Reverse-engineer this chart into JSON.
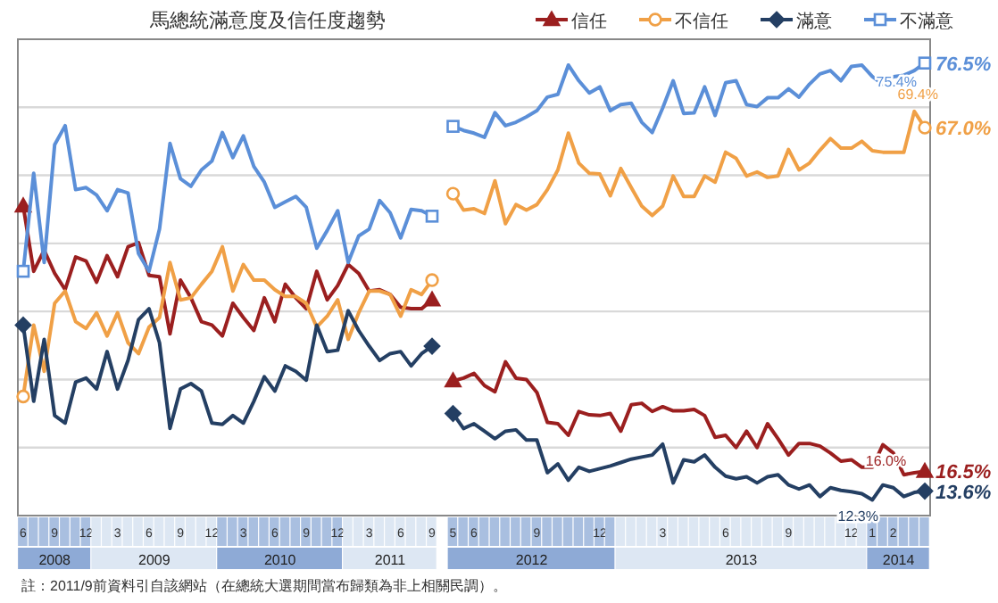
{
  "chart_data": {
    "type": "line",
    "title": "馬總統滿意度及信任度趨勢",
    "categories": [
      "6",
      null,
      null,
      "9",
      null,
      null,
      "12",
      null,
      null,
      "3",
      null,
      null,
      "6",
      null,
      null,
      "9",
      null,
      null,
      "12",
      null,
      null,
      "3",
      null,
      null,
      "6",
      null,
      null,
      "9",
      null,
      null,
      "12",
      null,
      null,
      "3",
      null,
      null,
      "6",
      null,
      null,
      "9",
      null,
      "5",
      null,
      "6",
      null,
      null,
      null,
      null,
      null,
      "9",
      null,
      null,
      null,
      null,
      null,
      "12",
      null,
      null,
      null,
      null,
      null,
      "3",
      null,
      null,
      null,
      null,
      null,
      "6",
      null,
      null,
      null,
      null,
      null,
      "9",
      null,
      null,
      null,
      null,
      null,
      "12",
      null,
      "1",
      null,
      "2",
      null,
      null,
      null
    ],
    "ylim": [
      10,
      80
    ],
    "yticks": [
      {
        "value": 20,
        "label": null
      },
      {
        "value": 30,
        "label": null
      },
      {
        "value": 40,
        "label": null
      },
      {
        "value": 50,
        "label": null
      },
      {
        "value": 60,
        "label": null
      },
      {
        "value": 70,
        "label": null
      }
    ],
    "grid": "y",
    "legend": "top right",
    "tick_labels": "x",
    "series": [
      {
        "name": "信任",
        "color": "#9b1f1f",
        "values": [
          55.5,
          45.9,
          49.0,
          45.6,
          43.2,
          48.0,
          47.4,
          44.3,
          48.2,
          45.1,
          49.5,
          50.1,
          45.3,
          45.1,
          36.7,
          44.6,
          42.0,
          38.5,
          38.0,
          36.4,
          41.2,
          39.1,
          37.2,
          42.0,
          38.5,
          44.0,
          42.0,
          40.4,
          45.9,
          41.7,
          43.8,
          46.9,
          45.6,
          43.0,
          43.2,
          42.5,
          40.6,
          40.4,
          40.4,
          41.7,
          null,
          29.8,
          30.2,
          30.9,
          29.1,
          28.2,
          32.6,
          30.2,
          30.0,
          28.1,
          23.7,
          23.5,
          21.8,
          25.3,
          24.8,
          24.7,
          25.0,
          22.4,
          26.3,
          26.5,
          25.3,
          26.0,
          25.4,
          25.4,
          25.6,
          24.7,
          21.5,
          21.8,
          20.0,
          22.4,
          20.0,
          23.5,
          21.3,
          18.9,
          20.6,
          20.6,
          20.2,
          19.2,
          18.0,
          18.2,
          17.1,
          17.1,
          20.4,
          19.2,
          16.0,
          16.3,
          16.5
        ],
        "value_labels": [
          null,
          null,
          null,
          null,
          null,
          null,
          null,
          null,
          null,
          null,
          null,
          null,
          null,
          null,
          null,
          null,
          null,
          null,
          null,
          null,
          null,
          null,
          null,
          null,
          null,
          null,
          null,
          null,
          null,
          null,
          null,
          null,
          null,
          null,
          null,
          null,
          null,
          null,
          null,
          null,
          null,
          null,
          null,
          null,
          null,
          null,
          null,
          null,
          null,
          null,
          null,
          null,
          null,
          null,
          null,
          null,
          null,
          null,
          null,
          null,
          null,
          null,
          null,
          null,
          null,
          null,
          null,
          null,
          null,
          null,
          null,
          null,
          null,
          null,
          null,
          null,
          null,
          null,
          null,
          null,
          null,
          null,
          null,
          null,
          "16.0%",
          null,
          "16.5%"
        ]
      },
      {
        "name": "不信任",
        "color": "#f0a046",
        "values": [
          27.5,
          38.0,
          31.2,
          41.2,
          43.0,
          38.5,
          37.5,
          39.8,
          36.4,
          39.8,
          35.4,
          33.8,
          37.7,
          39.1,
          47.2,
          41.7,
          42.0,
          44.0,
          45.9,
          49.5,
          43.0,
          46.9,
          44.6,
          44.6,
          43.2,
          42.2,
          42.2,
          41.2,
          37.7,
          39.3,
          41.7,
          35.9,
          39.8,
          43.0,
          43.0,
          42.5,
          39.3,
          43.2,
          42.5,
          44.6,
          null,
          57.3,
          54.9,
          55.1,
          54.4,
          59.2,
          52.9,
          55.7,
          54.9,
          55.7,
          57.9,
          60.8,
          66.2,
          61.8,
          60.3,
          60.2,
          57.0,
          61.0,
          58.2,
          55.5,
          54.1,
          55.5,
          59.9,
          56.9,
          56.9,
          59.9,
          59.0,
          63.4,
          62.5,
          59.9,
          60.5,
          59.7,
          59.9,
          63.8,
          60.8,
          61.8,
          63.7,
          65.4,
          64.0,
          64.0,
          65.0,
          63.6,
          63.4,
          63.4,
          63.4,
          69.4,
          67.0
        ],
        "value_labels": [
          null,
          null,
          null,
          null,
          null,
          null,
          null,
          null,
          null,
          null,
          null,
          null,
          null,
          null,
          null,
          null,
          null,
          null,
          null,
          null,
          null,
          null,
          null,
          null,
          null,
          null,
          null,
          null,
          null,
          null,
          null,
          null,
          null,
          null,
          null,
          null,
          null,
          null,
          null,
          null,
          null,
          null,
          null,
          null,
          null,
          null,
          null,
          null,
          null,
          null,
          null,
          null,
          null,
          null,
          null,
          null,
          null,
          null,
          null,
          null,
          null,
          null,
          null,
          null,
          null,
          null,
          null,
          null,
          null,
          null,
          null,
          null,
          null,
          null,
          null,
          null,
          null,
          null,
          null,
          null,
          null,
          null,
          null,
          null,
          null,
          "69.4%",
          "67.0%"
        ]
      },
      {
        "name": "滿意",
        "color": "#243f63",
        "values": [
          38.0,
          26.8,
          35.9,
          24.7,
          23.6,
          29.6,
          30.2,
          28.6,
          34.1,
          28.6,
          32.8,
          38.8,
          40.4,
          35.4,
          22.8,
          28.6,
          29.4,
          28.3,
          23.6,
          23.4,
          24.7,
          23.6,
          26.8,
          30.4,
          28.3,
          32.0,
          31.2,
          29.9,
          38.0,
          34.1,
          34.3,
          40.1,
          37.2,
          34.9,
          32.8,
          33.8,
          34.1,
          32.0,
          33.8,
          34.9,
          null,
          25.0,
          22.8,
          23.5,
          22.4,
          21.3,
          22.4,
          22.6,
          21.1,
          21.1,
          16.3,
          17.6,
          15.2,
          17.1,
          16.5,
          16.9,
          17.3,
          17.8,
          18.3,
          18.6,
          18.9,
          20.5,
          14.8,
          18.2,
          17.9,
          18.9,
          17.1,
          15.8,
          15.4,
          15.7,
          14.8,
          15.7,
          16.0,
          14.5,
          13.9,
          14.5,
          12.8,
          14.1,
          13.7,
          13.5,
          13.2,
          12.3,
          14.5,
          14.1,
          12.8,
          13.4,
          13.6
        ],
        "value_labels": [
          null,
          null,
          null,
          null,
          null,
          null,
          null,
          null,
          null,
          null,
          null,
          null,
          null,
          null,
          null,
          null,
          null,
          null,
          null,
          null,
          null,
          null,
          null,
          null,
          null,
          null,
          null,
          null,
          null,
          null,
          null,
          null,
          null,
          null,
          null,
          null,
          null,
          null,
          null,
          null,
          null,
          null,
          null,
          null,
          null,
          null,
          null,
          null,
          null,
          null,
          null,
          null,
          null,
          null,
          null,
          null,
          null,
          null,
          null,
          null,
          null,
          null,
          null,
          null,
          null,
          null,
          null,
          null,
          null,
          null,
          null,
          null,
          null,
          null,
          null,
          null,
          null,
          null,
          null,
          null,
          null,
          "12.3%",
          null,
          null,
          null,
          null,
          "13.6%"
        ]
      },
      {
        "name": "不滿意",
        "color": "#5b8fd8",
        "values": [
          45.9,
          60.3,
          47.2,
          64.5,
          67.3,
          57.9,
          58.2,
          57.1,
          54.8,
          57.9,
          57.4,
          48.5,
          45.9,
          52.1,
          64.7,
          59.5,
          58.4,
          60.8,
          62.1,
          66.3,
          62.6,
          65.8,
          61.3,
          59.0,
          55.3,
          56.1,
          56.9,
          55.3,
          49.3,
          51.9,
          54.8,
          47.2,
          51.1,
          52.1,
          56.3,
          54.5,
          50.8,
          55.0,
          54.8,
          54.0,
          null,
          67.2,
          66.6,
          66.2,
          65.6,
          69.2,
          67.3,
          67.8,
          68.6,
          69.5,
          71.5,
          71.9,
          76.2,
          73.9,
          72.1,
          73.0,
          69.5,
          70.4,
          70.6,
          67.8,
          66.3,
          69.9,
          73.9,
          69.1,
          69.2,
          73.0,
          68.8,
          73.6,
          73.9,
          70.4,
          70.1,
          71.4,
          71.4,
          72.7,
          71.5,
          73.4,
          74.9,
          75.4,
          73.9,
          76.0,
          76.2,
          74.5,
          73.4,
          74.5,
          74.7,
          75.4,
          76.5
        ],
        "value_labels": [
          null,
          null,
          null,
          null,
          null,
          null,
          null,
          null,
          null,
          null,
          null,
          null,
          null,
          null,
          null,
          null,
          null,
          null,
          null,
          null,
          null,
          null,
          null,
          null,
          null,
          null,
          null,
          null,
          null,
          null,
          null,
          null,
          null,
          null,
          null,
          null,
          null,
          null,
          null,
          null,
          null,
          null,
          null,
          null,
          null,
          null,
          null,
          null,
          null,
          null,
          null,
          null,
          null,
          null,
          null,
          null,
          null,
          null,
          null,
          null,
          null,
          null,
          null,
          null,
          null,
          null,
          null,
          null,
          null,
          null,
          null,
          null,
          null,
          null,
          null,
          null,
          null,
          null,
          null,
          null,
          null,
          null,
          null,
          null,
          null,
          "75.4%",
          "76.5%"
        ]
      }
    ],
    "annotations": [
      "2008",
      "2009",
      "2010",
      "2011",
      "2012",
      "2013",
      "2014",
      "註：2011/9前資料引自該網站（在總統大選期間當布歸類為非上相關民調）。"
    ]
  }
}
